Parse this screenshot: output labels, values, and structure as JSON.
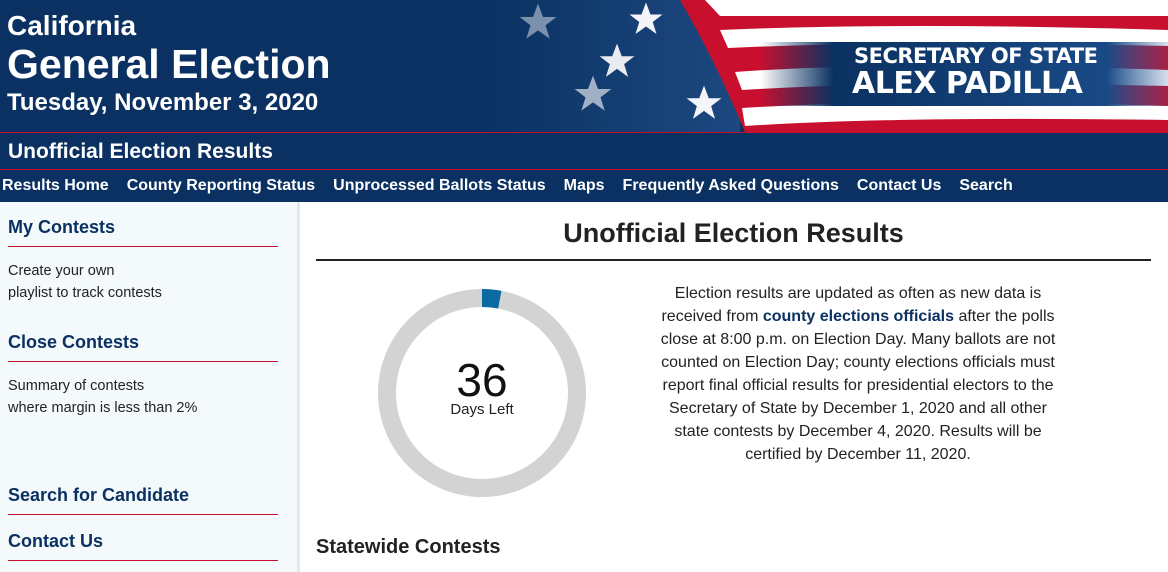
{
  "banner": {
    "state": "California",
    "title": "General Election",
    "date": "Tuesday, November 3, 2020",
    "sos_line1": "SECRETARY OF STATE",
    "sos_line2": "ALEX PADILLA"
  },
  "subtitle": "Unofficial Election Results",
  "nav": [
    "Results Home",
    "County Reporting Status",
    "Unprocessed Ballots Status",
    "Maps",
    "Frequently Asked Questions",
    "Contact Us",
    "Search"
  ],
  "sidebar": {
    "my_contests": {
      "heading": "My Contests",
      "desc_line1": "Create your own",
      "desc_line2": "playlist to track contests"
    },
    "close_contests": {
      "heading": "Close Contests",
      "desc_line1": "Summary of contests",
      "desc_line2": "where margin is less than 2%"
    },
    "search_candidate": {
      "heading": "Search for Candidate"
    },
    "contact_us": {
      "heading": "Contact Us"
    }
  },
  "main": {
    "title": "Unofficial Election Results",
    "countdown": {
      "number": "36",
      "label": "Days Left",
      "progress_fraction": 0.03
    },
    "info": {
      "before_link": "Election results are updated as often as new data is received from",
      "link": "county elections officials",
      "after_link": "after the polls close at 8:00 p.m. on Election Day. Many ballots are not counted on Election Day; county elections officials must report final official results for presidential electors to the Secretary of State by December 1, 2020 and all other state contests by December 4, 2020. Results will be certified by December 11, 2020."
    },
    "statewide_heading": "Statewide Contests"
  },
  "colors": {
    "navy": "#0a3161",
    "red": "#c8102e",
    "ring_track": "#d3d3d3",
    "ring_progress": "#0b6aa2"
  },
  "icons": [
    "star-icon"
  ]
}
